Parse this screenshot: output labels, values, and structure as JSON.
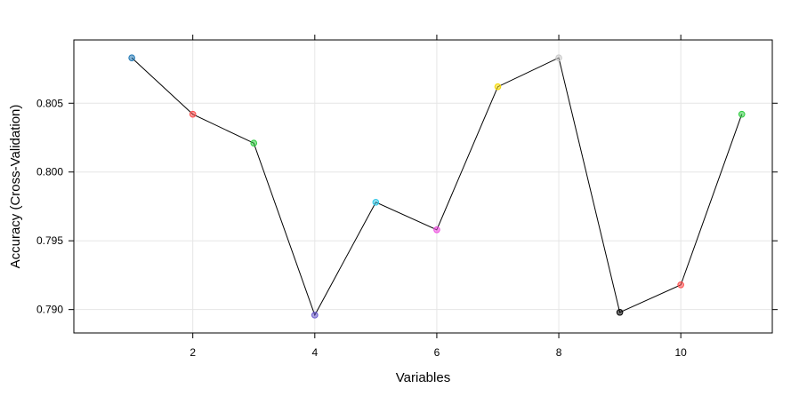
{
  "chart_data": {
    "type": "line",
    "xlabel": "Variables",
    "ylabel": "Accuracy (Cross-Validation)",
    "xlim": [
      0.05,
      11.5
    ],
    "ylim": [
      0.7883,
      0.8096
    ],
    "x_ticks": [
      2,
      4,
      6,
      8,
      10
    ],
    "y_ticks": [
      0.79,
      0.795,
      0.8,
      0.805
    ],
    "y_tick_labels": [
      "0.790",
      "0.795",
      "0.800",
      "0.805"
    ],
    "grid": true,
    "line_color": "#000000",
    "series": [
      {
        "x": [
          1,
          2,
          3,
          4,
          5,
          6,
          7,
          8,
          9,
          10,
          11
        ],
        "values": [
          0.8083,
          0.8042,
          0.8021,
          0.7896,
          0.7978,
          0.7958,
          0.8062,
          0.8083,
          0.7898,
          0.7918,
          0.8042
        ]
      }
    ],
    "point_colors": [
      "#1f77b4",
      "#ff4d4d",
      "#2ecc40",
      "#6a5acd",
      "#35c8e8",
      "#ee4ce0",
      "#f5d800",
      "#c8c8c8",
      "#000000",
      "#ff4d4d",
      "#2ecc40"
    ]
  }
}
